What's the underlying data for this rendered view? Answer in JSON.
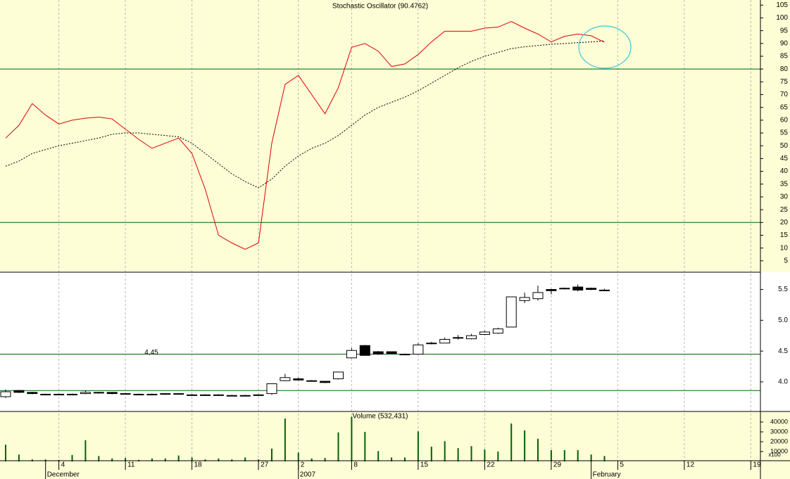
{
  "chart_data": [
    {
      "type": "line",
      "title": "Stochastic Oscillator (90.4762)",
      "background": "#fdfdd6",
      "series": [
        {
          "color": "#e00000",
          "values": [
            53,
            58,
            66.5,
            62,
            58.5,
            60,
            60.8,
            61.2,
            60.5,
            56.5,
            52.5,
            49,
            51,
            53,
            47,
            33,
            15,
            12,
            9.5,
            12,
            51,
            74,
            77.5,
            70,
            62.5,
            72.7,
            88.5,
            90,
            87,
            81,
            82,
            85.7,
            90.6,
            94.8,
            94.8,
            94.8,
            96,
            96.4,
            98.6,
            96,
            93.7,
            90.6,
            92.8,
            93.7,
            93,
            90.4762,
            null,
            null,
            null,
            null,
            null,
            null,
            null,
            null,
            null,
            null,
            null
          ]
        },
        {
          "color": "#000000",
          "dashed": true,
          "values": [
            42,
            44,
            47,
            48.5,
            50,
            51,
            52,
            53,
            54.5,
            55,
            55,
            54.5,
            54,
            53.5,
            51,
            47,
            43,
            39,
            36,
            33.5,
            37,
            42,
            46,
            49,
            51,
            54,
            58,
            62,
            65,
            67,
            69,
            71.5,
            74.5,
            77.5,
            80.5,
            83,
            85,
            86.5,
            88,
            88.7,
            89.2,
            89.7,
            90,
            90.3,
            90.6,
            91,
            null,
            null,
            null,
            null,
            null,
            null,
            null,
            null,
            null,
            null,
            null
          ]
        }
      ],
      "ylim": [
        0,
        107
      ],
      "yticks": [
        5,
        10,
        15,
        20,
        25,
        30,
        35,
        40,
        45,
        50,
        55,
        60,
        65,
        70,
        75,
        80,
        85,
        90,
        95,
        100,
        105
      ],
      "reference_lines": [
        80,
        20
      ],
      "reference_color": "#006400"
    },
    {
      "type": "candlestick",
      "background": "#ffffff",
      "up_color": "#ffffff",
      "down_color": "#000000",
      "open": [
        3.76,
        3.86,
        3.83,
        3.8,
        3.8,
        3.8,
        3.81,
        3.83,
        3.83,
        3.81,
        3.8,
        3.8,
        3.8,
        3.81,
        3.79,
        3.79,
        3.79,
        3.78,
        3.78,
        3.79,
        3.81,
        4.02,
        4.05,
        4.02,
        4.01,
        4.05,
        4.39,
        4.59,
        4.49,
        4.49,
        4.45,
        4.45,
        4.62,
        4.63,
        4.71,
        4.7,
        4.77,
        4.79,
        4.89,
        5.32,
        5.35,
        5.5,
        5.52,
        5.54,
        5.52,
        5.49,
        null,
        null,
        null,
        null,
        null,
        null,
        null,
        null,
        null,
        null,
        null
      ],
      "high": [
        3.875,
        3.87,
        3.84,
        3.81,
        3.81,
        3.81,
        3.86,
        3.84,
        3.83,
        3.82,
        3.81,
        3.81,
        3.81,
        3.81,
        3.8,
        3.8,
        3.8,
        3.79,
        3.79,
        3.8,
        3.97,
        4.13,
        4.07,
        4.03,
        4.01,
        4.16,
        4.55,
        4.6,
        4.5,
        4.49,
        4.46,
        4.63,
        4.65,
        4.72,
        4.76,
        4.78,
        4.83,
        4.88,
        5.38,
        5.45,
        5.56,
        5.51,
        5.53,
        5.58,
        5.53,
        5.51,
        null,
        null,
        null,
        null,
        null,
        null,
        null,
        null,
        null,
        null,
        null
      ],
      "low": [
        3.74,
        3.82,
        3.8,
        3.8,
        3.79,
        3.79,
        3.8,
        3.81,
        3.8,
        3.8,
        3.79,
        3.79,
        3.79,
        3.8,
        3.78,
        3.78,
        3.78,
        3.77,
        3.77,
        3.78,
        3.79,
        4.01,
        4.02,
        4.01,
        3.98,
        4.04,
        4.38,
        4.43,
        4.44,
        4.45,
        4.44,
        4.45,
        4.61,
        4.63,
        4.69,
        4.69,
        4.76,
        4.78,
        4.89,
        5.28,
        5.32,
        5.42,
        5.5,
        5.47,
        5.49,
        5.47,
        null,
        null,
        null,
        null,
        null,
        null,
        null,
        null,
        null,
        null,
        null
      ],
      "close": [
        3.84,
        3.83,
        3.81,
        3.8,
        3.8,
        3.8,
        3.83,
        3.82,
        3.81,
        3.8,
        3.8,
        3.8,
        3.81,
        3.8,
        3.79,
        3.79,
        3.79,
        3.78,
        3.78,
        3.79,
        3.97,
        4.07,
        4.03,
        4.02,
        3.99,
        4.16,
        4.51,
        4.43,
        4.45,
        4.46,
        4.45,
        4.6,
        4.63,
        4.69,
        4.72,
        4.75,
        4.81,
        4.86,
        5.38,
        5.37,
        5.45,
        5.48,
        5.51,
        5.49,
        5.5,
        5.49,
        null,
        null,
        null,
        null,
        null,
        null,
        null,
        null,
        null,
        null,
        null
      ],
      "ylim": [
        3.52,
        5.78
      ],
      "yticks": [
        {
          "value": 4,
          "label": "4.0"
        },
        4.5,
        {
          "value": 5,
          "label": "5.0"
        },
        5.5
      ],
      "reference_lines": [
        {
          "value": 4.45,
          "label": "4,45"
        },
        3.86
      ],
      "reference_color": "#006400"
    },
    {
      "type": "bar",
      "title": "Volume (532,431)",
      "background": "#fdfdd6",
      "color": "#006400",
      "values": [
        17000,
        7000,
        2000,
        2000,
        1500,
        6500,
        21500,
        5500,
        3000,
        3500,
        1500,
        3000,
        3000,
        6000,
        4000,
        2000,
        3000,
        2000,
        4000,
        2000,
        13000,
        43500,
        9000,
        3000,
        3500,
        29500,
        45500,
        30000,
        10500,
        4000,
        4000,
        30500,
        15000,
        20500,
        13500,
        15500,
        12000,
        10000,
        38500,
        31500,
        23000,
        11500,
        11500,
        11500,
        7000,
        5500,
        null,
        null,
        null,
        null,
        null,
        null,
        null,
        null,
        null,
        null,
        null
      ],
      "ylim": [
        0,
        50700
      ],
      "yticks": [
        10000,
        20000,
        30000,
        40000
      ],
      "axis_unit": "x100",
      "categories": [
        null,
        null,
        null,
        null,
        "4",
        null,
        null,
        null,
        null,
        "11",
        null,
        null,
        null,
        null,
        "18",
        null,
        null,
        null,
        null,
        "27",
        null,
        null,
        "2",
        null,
        null,
        null,
        "8",
        null,
        null,
        null,
        null,
        "15",
        null,
        null,
        null,
        null,
        "22",
        null,
        null,
        null,
        null,
        "29",
        null,
        null,
        null,
        null,
        "5",
        null,
        null,
        null,
        null,
        "12",
        null,
        null,
        null,
        null,
        "19"
      ],
      "months": [
        null,
        null,
        null,
        "December",
        null,
        null,
        null,
        null,
        null,
        null,
        null,
        null,
        null,
        null,
        null,
        null,
        null,
        null,
        null,
        null,
        null,
        null,
        "2007",
        null,
        null,
        null,
        null,
        null,
        null,
        null,
        null,
        null,
        null,
        null,
        null,
        null,
        null,
        null,
        null,
        null,
        null,
        null,
        null,
        null,
        "February",
        null,
        null,
        null,
        null,
        null,
        null,
        null,
        null,
        null,
        null,
        null,
        null
      ]
    }
  ]
}
